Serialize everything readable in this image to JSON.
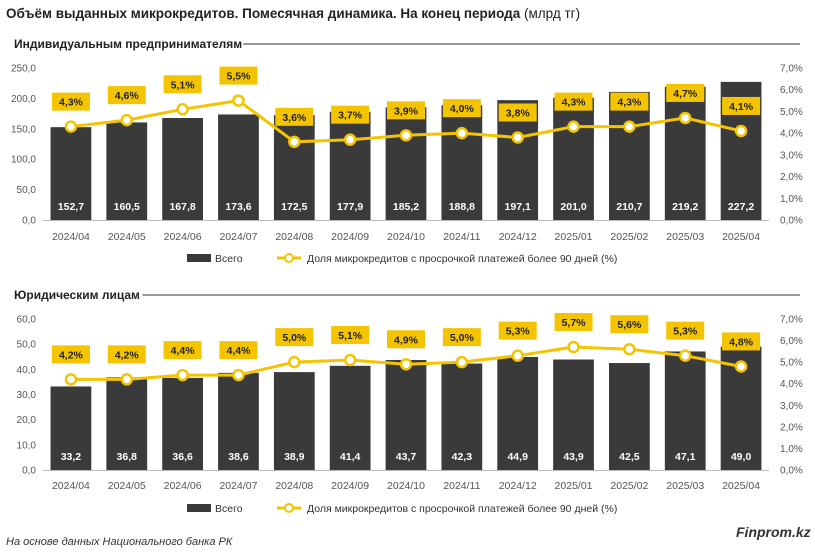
{
  "title_bold": "Объём выданных микрокредитов. Помесячная динамика. На конец периода",
  "title_unit": "(млрд тг)",
  "source": "На основе данных Национального банка РК",
  "brand": "Finprom.kz",
  "colors": {
    "bar": "#3a3a3a",
    "line": "#f5c400",
    "label_bg": "#f5c400"
  },
  "chart_data": [
    {
      "type": "bar",
      "title": "Индивидуальным предпринимателям",
      "categories": [
        "2024/04",
        "2024/05",
        "2024/06",
        "2024/07",
        "2024/08",
        "2024/09",
        "2024/10",
        "2024/11",
        "2024/12",
        "2025/01",
        "2025/02",
        "2025/03",
        "2025/04"
      ],
      "series": [
        {
          "name": "Всего",
          "type": "bar",
          "axis": "left",
          "values": [
            152.7,
            160.5,
            167.8,
            173.6,
            172.5,
            177.9,
            185.2,
            188.8,
            197.1,
            201.0,
            210.7,
            219.2,
            227.2
          ],
          "labels": [
            "152,7",
            "160,5",
            "167,8",
            "173,6",
            "172,5",
            "177,9",
            "185,2",
            "188,8",
            "197,1",
            "201,0",
            "210,7",
            "219,2",
            "227,2"
          ]
        },
        {
          "name": "Доля микрокредитов с просрочкой платежей более 90 дней (%)",
          "type": "line",
          "axis": "right",
          "values": [
            4.3,
            4.6,
            5.1,
            5.5,
            3.6,
            3.7,
            3.9,
            4.0,
            3.8,
            4.3,
            4.3,
            4.7,
            4.1
          ],
          "labels": [
            "4,3%",
            "4,6%",
            "5,1%",
            "5,5%",
            "3,6%",
            "3,7%",
            "3,9%",
            "4,0%",
            "3,8%",
            "4,3%",
            "4,3%",
            "4,7%",
            "4,1%"
          ]
        }
      ],
      "ylim": [
        0,
        250
      ],
      "yticks": [
        "0,0",
        "50,0",
        "100,0",
        "150,0",
        "200,0",
        "250,0"
      ],
      "y2lim": [
        0,
        7
      ],
      "y2ticks": [
        "0,0%",
        "1,0%",
        "2,0%",
        "3,0%",
        "4,0%",
        "5,0%",
        "6,0%",
        "7,0%"
      ],
      "legend_position": "bottom"
    },
    {
      "type": "bar",
      "title": "Юридическим лицам",
      "categories": [
        "2024/04",
        "2024/05",
        "2024/06",
        "2024/07",
        "2024/08",
        "2024/09",
        "2024/10",
        "2024/11",
        "2024/12",
        "2025/01",
        "2025/02",
        "2025/03",
        "2025/04"
      ],
      "series": [
        {
          "name": "Всего",
          "type": "bar",
          "axis": "left",
          "values": [
            33.2,
            36.8,
            36.6,
            38.6,
            38.9,
            41.4,
            43.7,
            42.3,
            44.9,
            43.9,
            42.5,
            47.1,
            49.0
          ],
          "labels": [
            "33,2",
            "36,8",
            "36,6",
            "38,6",
            "38,9",
            "41,4",
            "43,7",
            "42,3",
            "44,9",
            "43,9",
            "42,5",
            "47,1",
            "49,0"
          ]
        },
        {
          "name": "Доля микрокредитов с просрочкой платежей более 90 дней (%)",
          "type": "line",
          "axis": "right",
          "values": [
            4.2,
            4.2,
            4.4,
            4.4,
            5.0,
            5.1,
            4.9,
            5.0,
            5.3,
            5.7,
            5.6,
            5.3,
            4.8
          ],
          "labels": [
            "4,2%",
            "4,2%",
            "4,4%",
            "4,4%",
            "5,0%",
            "5,1%",
            "4,9%",
            "5,0%",
            "5,3%",
            "5,7%",
            "5,6%",
            "5,3%",
            "4,8%"
          ]
        }
      ],
      "ylim": [
        0,
        60
      ],
      "yticks": [
        "0,0",
        "10,0",
        "20,0",
        "30,0",
        "40,0",
        "50,0",
        "60,0"
      ],
      "y2lim": [
        0,
        7
      ],
      "y2ticks": [
        "0,0%",
        "1,0%",
        "2,0%",
        "3,0%",
        "4,0%",
        "5,0%",
        "6,0%",
        "7,0%"
      ],
      "legend_position": "bottom"
    }
  ]
}
